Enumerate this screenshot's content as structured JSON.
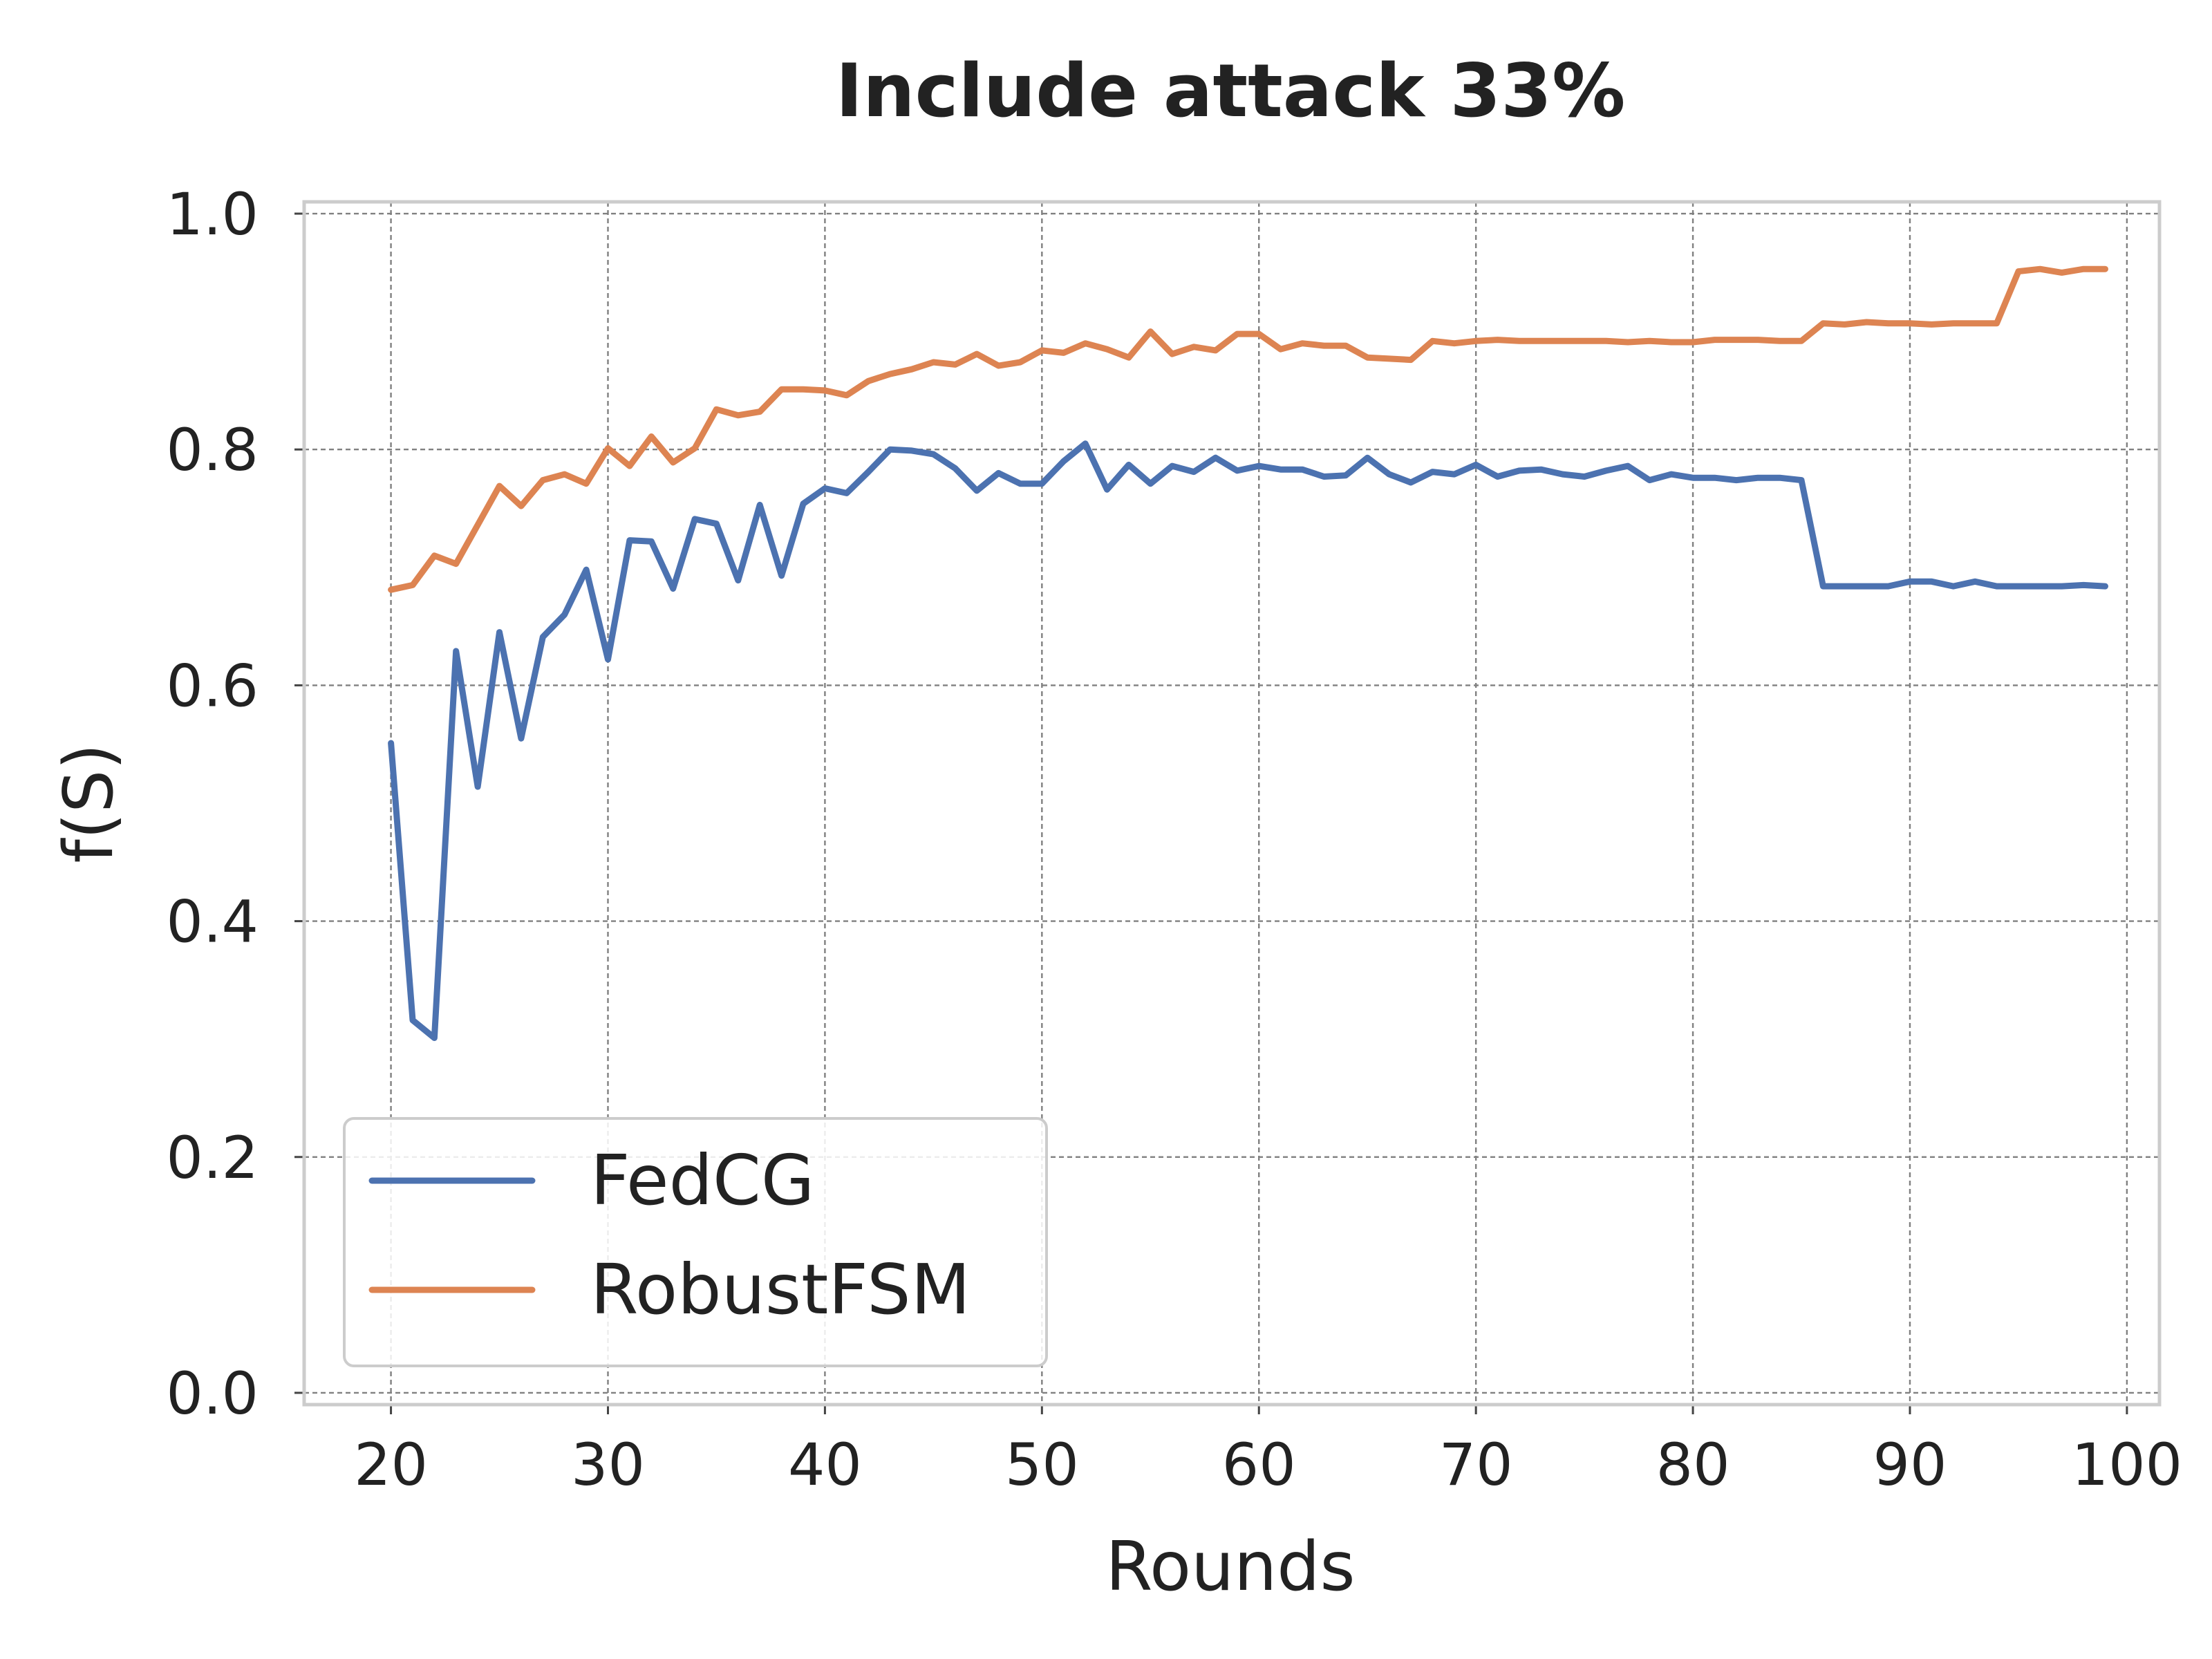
{
  "chart_data": {
    "type": "line",
    "title": "Include attack 33%",
    "xlabel": "Rounds",
    "ylabel": "f(S)",
    "xlim": [
      16,
      101.5
    ],
    "ylim": [
      -0.01,
      1.01
    ],
    "xticks": [
      20,
      30,
      40,
      50,
      60,
      70,
      80,
      90,
      100
    ],
    "xtick_labels": [
      "20",
      "30",
      "40",
      "50",
      "60",
      "70",
      "80",
      "90",
      "100"
    ],
    "yticks": [
      0.0,
      0.2,
      0.4,
      0.6,
      0.8,
      1.0
    ],
    "ytick_labels": [
      "0.0",
      "0.2",
      "0.4",
      "0.6",
      "0.8",
      "1.0"
    ],
    "grid": true,
    "legend_position": "lower-left",
    "x": [
      20,
      21,
      22,
      23,
      24,
      25,
      26,
      27,
      28,
      29,
      30,
      31,
      32,
      33,
      34,
      35,
      36,
      37,
      38,
      39,
      40,
      41,
      42,
      43,
      44,
      45,
      46,
      47,
      48,
      49,
      50,
      51,
      52,
      53,
      54,
      55,
      56,
      57,
      58,
      59,
      60,
      61,
      62,
      63,
      64,
      65,
      66,
      67,
      68,
      69,
      70,
      71,
      72,
      73,
      74,
      75,
      76,
      77,
      78,
      79,
      80,
      81,
      82,
      83,
      84,
      85,
      86,
      87,
      88,
      89,
      90,
      91,
      92,
      93,
      94,
      95,
      96,
      97,
      98,
      99
    ],
    "series": [
      {
        "name": "FedCG",
        "color": "#4c72b0",
        "values": [
          0.551,
          0.316,
          0.301,
          0.629,
          0.514,
          0.645,
          0.555,
          0.641,
          0.66,
          0.698,
          0.622,
          0.723,
          0.722,
          0.682,
          0.741,
          0.737,
          0.689,
          0.753,
          0.693,
          0.754,
          0.767,
          0.763,
          0.781,
          0.8,
          0.799,
          0.796,
          0.784,
          0.765,
          0.78,
          0.771,
          0.771,
          0.79,
          0.805,
          0.766,
          0.787,
          0.771,
          0.786,
          0.781,
          0.793,
          0.782,
          0.786,
          0.783,
          0.783,
          0.777,
          0.778,
          0.793,
          0.779,
          0.772,
          0.781,
          0.779,
          0.787,
          0.777,
          0.782,
          0.783,
          0.779,
          0.777,
          0.782,
          0.786,
          0.774,
          0.779,
          0.776,
          0.776,
          0.774,
          0.776,
          0.776,
          0.774,
          0.684,
          0.684,
          0.684,
          0.684,
          0.688,
          0.688,
          0.684,
          0.688,
          0.684,
          0.684,
          0.684,
          0.684,
          0.685,
          0.684
        ]
      },
      {
        "name": "RobustFSM",
        "color": "#dd8452",
        "values": [
          0.681,
          0.685,
          0.71,
          0.703,
          0.736,
          0.769,
          0.752,
          0.774,
          0.779,
          0.771,
          0.801,
          0.786,
          0.811,
          0.789,
          0.801,
          0.834,
          0.829,
          0.832,
          0.851,
          0.851,
          0.85,
          0.846,
          0.858,
          0.864,
          0.868,
          0.874,
          0.872,
          0.881,
          0.871,
          0.874,
          0.884,
          0.882,
          0.89,
          0.885,
          0.878,
          0.9,
          0.881,
          0.887,
          0.884,
          0.898,
          0.898,
          0.885,
          0.89,
          0.888,
          0.888,
          0.878,
          0.877,
          0.876,
          0.892,
          0.89,
          0.892,
          0.893,
          0.892,
          0.892,
          0.892,
          0.892,
          0.892,
          0.891,
          0.892,
          0.891,
          0.891,
          0.893,
          0.893,
          0.893,
          0.892,
          0.892,
          0.907,
          0.906,
          0.908,
          0.907,
          0.907,
          0.906,
          0.907,
          0.907,
          0.907,
          0.951,
          0.953,
          0.95,
          0.953,
          0.953
        ]
      }
    ]
  }
}
